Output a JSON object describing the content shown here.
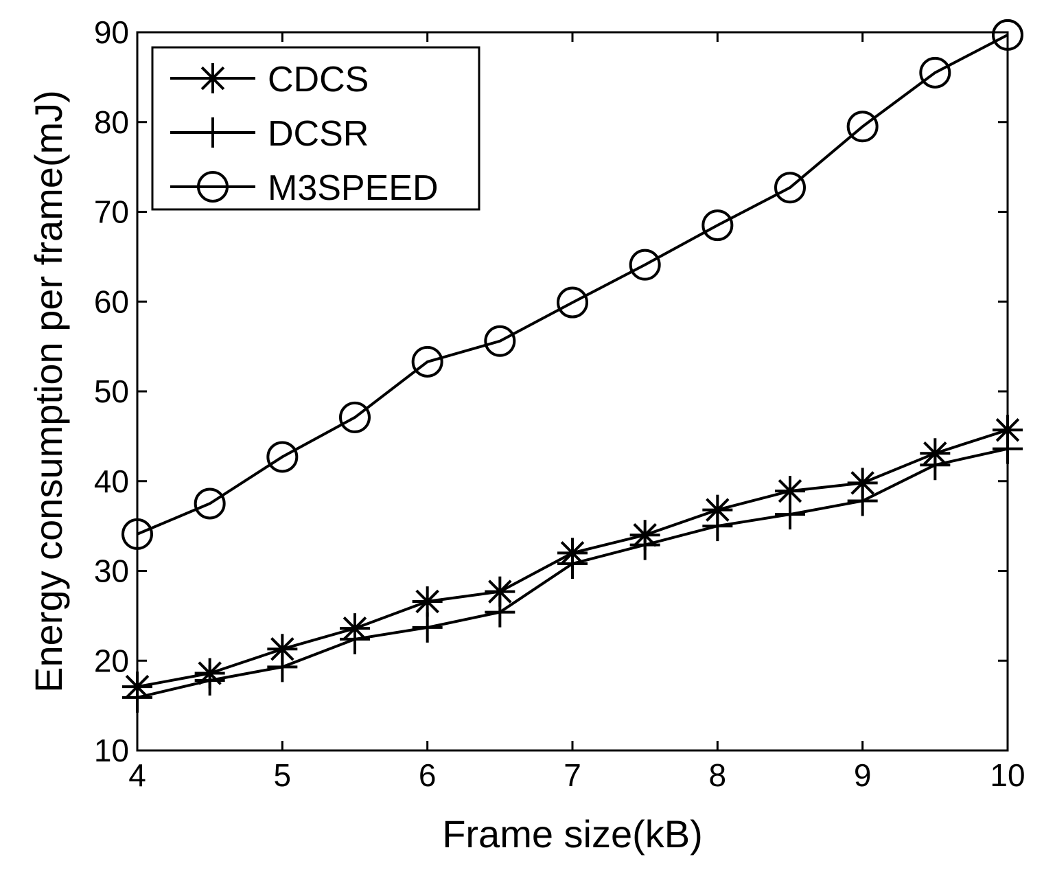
{
  "chart_data": {
    "type": "line",
    "title": "",
    "xlabel": "Frame size(kB)",
    "ylabel": "Energy consumption per frame(mJ)",
    "xlim": [
      4,
      10
    ],
    "ylim": [
      10,
      90
    ],
    "xticks": [
      4,
      5,
      6,
      7,
      8,
      9,
      10
    ],
    "yticks": [
      10,
      20,
      30,
      40,
      50,
      60,
      70,
      80,
      90
    ],
    "grid": false,
    "legend_position": "top-left",
    "x": [
      4,
      4.5,
      5,
      5.5,
      6,
      6.5,
      7,
      7.5,
      8,
      8.5,
      9,
      9.5,
      10
    ],
    "series": [
      {
        "name": "CDCS",
        "marker": "asterisk",
        "values": [
          17.1,
          18.6,
          21.3,
          23.6,
          26.6,
          27.7,
          32.0,
          34.0,
          36.8,
          38.9,
          39.8,
          43.1,
          45.7
        ]
      },
      {
        "name": "DCSR",
        "marker": "plus",
        "values": [
          15.9,
          17.8,
          19.3,
          22.4,
          23.7,
          25.4,
          30.8,
          32.9,
          35.0,
          36.3,
          37.8,
          41.8,
          43.6
        ]
      },
      {
        "name": "M3SPEED",
        "marker": "circle",
        "values": [
          34.1,
          37.5,
          42.7,
          47.1,
          53.3,
          55.6,
          59.9,
          64.1,
          68.5,
          72.7,
          79.5,
          85.5,
          89.7
        ]
      }
    ]
  }
}
